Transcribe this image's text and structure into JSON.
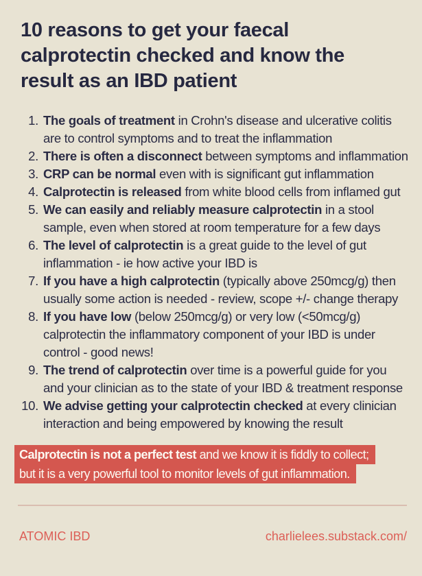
{
  "title": {
    "lines": [
      "10 reasons to get your faecal",
      "calprotectin checked and know the",
      "result as an IBD patient"
    ]
  },
  "reasons": {
    "items": [
      {
        "num": "1.",
        "lines": [
          {
            "bold": "The goals of treatment",
            "text": " in Crohn's disease and ulcerative colitis"
          },
          {
            "text": "are to control symptoms and to treat the inflammation"
          }
        ]
      },
      {
        "num": "2.",
        "lines": [
          {
            "bold": "There is often a disconnect",
            "text": " between symptoms and inflammation"
          }
        ]
      },
      {
        "num": "3.",
        "lines": [
          {
            "bold": "CRP can be normal",
            "text": " even with is significant gut inflammation"
          }
        ]
      },
      {
        "num": "4.",
        "lines": [
          {
            "bold": "Calprotectin is released",
            "text": " from white blood cells from inflamed gut"
          }
        ]
      },
      {
        "num": "5.",
        "lines": [
          {
            "bold": "We can easily and reliably measure calprotectin",
            "text": " in a stool"
          },
          {
            "text": "sample, even when stored at room temperature for a few days"
          }
        ]
      },
      {
        "num": "6.",
        "lines": [
          {
            "bold": "The level of calprotectin",
            "text": " is a great guide to the level of gut"
          },
          {
            "text": "inflammation - ie how active your IBD is"
          }
        ]
      },
      {
        "num": "7.",
        "lines": [
          {
            "bold": "If you have a high calprotectin",
            "text": " (typically above 250mcg/g) then"
          },
          {
            "text": "usually some action is needed - review, scope +/- change therapy"
          }
        ]
      },
      {
        "num": "8.",
        "lines": [
          {
            "bold": "If you have low",
            "text": " (below 250mcg/g) or very low (<50mcg/g)"
          },
          {
            "text": "calprotectin the inflammatory component of your IBD is under"
          },
          {
            "text": "control - good news!"
          }
        ]
      },
      {
        "num": "9.",
        "lines": [
          {
            "bold": "The trend of calprotectin",
            "text": " over time is a powerful guide for you"
          },
          {
            "text": "and your clinician as to the state of your IBD & treatment response"
          }
        ]
      },
      {
        "num": "10.",
        "lines": [
          {
            "bold": "We advise getting your calprotectin checked",
            "text": " at every clinician"
          },
          {
            "text": "interaction and being empowered by knowing the result"
          }
        ]
      }
    ]
  },
  "callout": {
    "line1_bold": "Calprotectin is not a perfect test",
    "line1_rest": " and we know it is fiddly to collect;",
    "line2": "but it is a very powerful tool to monitor levels of gut inflammation."
  },
  "footer": {
    "brand": "ATOMIC IBD",
    "link": "charlielees.substack.com/"
  },
  "colors": {
    "background": "#e8e3d3",
    "text": "#2a2b44",
    "accent_red": "#d4574f",
    "callout_text": "#fcf9f2",
    "divider": "#d9bdb0",
    "footer_text": "#dc5f57"
  }
}
